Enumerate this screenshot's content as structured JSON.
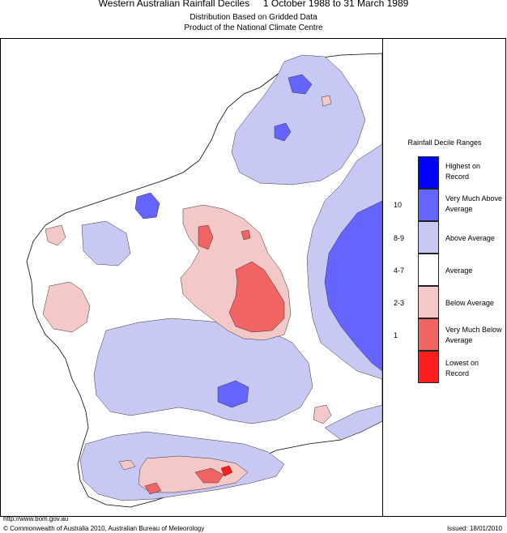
{
  "header": {
    "title": "Western Australian Rainfall Deciles     1 October 1988 to 31 March 1989",
    "subtitle1": "Distribution Based on Gridded Data",
    "subtitle2": "Product of the National Climate Centre"
  },
  "legend": {
    "title": "Rainfall Decile Ranges",
    "items": [
      {
        "label": "Highest on Record",
        "decile": "",
        "color": "#0000ff"
      },
      {
        "label": "Very Much Above Average",
        "decile": "10",
        "color": "#6464ff"
      },
      {
        "label": "Above Average",
        "decile": "8-9",
        "color": "#c8c8f5"
      },
      {
        "label": "Average",
        "decile": "4-7",
        "color": "#ffffff"
      },
      {
        "label": "Below Average",
        "decile": "2-3",
        "color": "#f5c8c8"
      },
      {
        "label": "Very Much Below Average",
        "decile": "1",
        "color": "#f06464"
      },
      {
        "label": "Lowest on Record",
        "decile": "",
        "color": "#ff1e1e"
      }
    ]
  },
  "footer": {
    "url": "http://www.bom.gov.au",
    "copyright": "© Commonwealth of Australia 2010, Australian Bureau of Meteorology",
    "issued": "Issued: 18/01/2010"
  }
}
